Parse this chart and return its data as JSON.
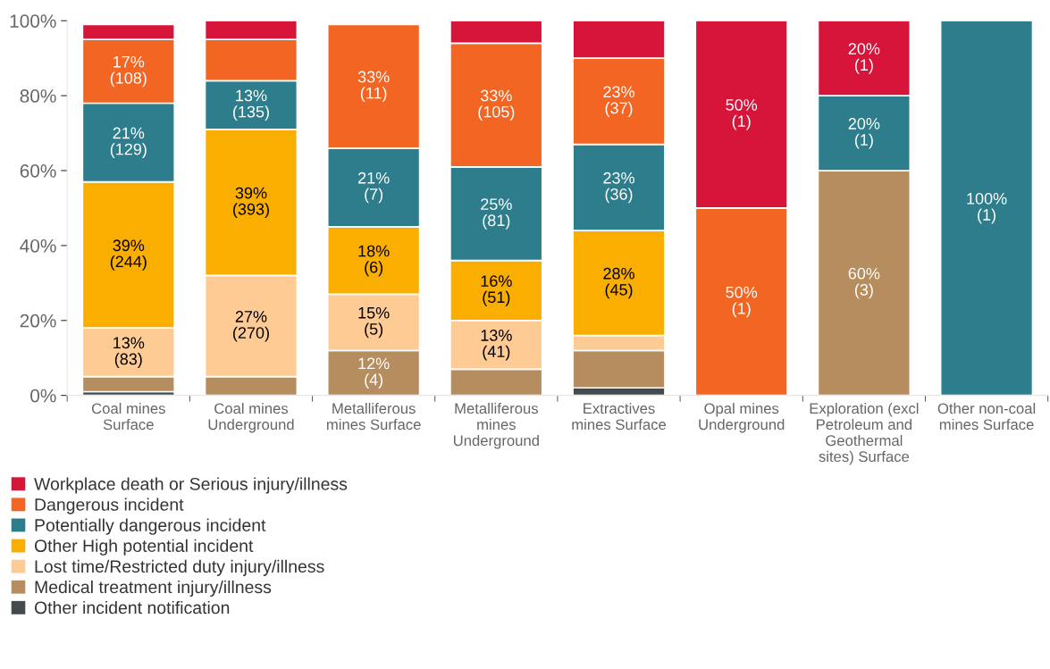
{
  "chart_data": {
    "type": "bar",
    "stacked": true,
    "categories": [
      "Coal mines\nSurface",
      "Coal mines\nUnderground",
      "Metalliferous\nmines Surface",
      "Metalliferous\nmines\nUnderground",
      "Extractives\nmines Surface",
      "Opal mines\nUnderground",
      "Exploration (excl\nPetroleum and\nGeothermal\nsites) Surface",
      "Other non-coal\nmines Surface"
    ],
    "series": [
      {
        "name": "Other incident notification",
        "color": "#434b4f",
        "values": [
          1,
          null,
          null,
          null,
          2,
          null,
          null,
          null
        ],
        "value_labels": [
          null,
          null,
          null,
          null,
          null,
          null,
          null,
          null
        ]
      },
      {
        "name": "Medical treatment injury/illness",
        "color": "#b68d5e",
        "values": [
          4,
          5,
          12,
          7,
          10,
          null,
          60,
          null
        ],
        "value_labels": [
          null,
          null,
          "12%\n(4)",
          null,
          null,
          null,
          "60%\n(3)",
          null
        ]
      },
      {
        "name": "Lost time/Restricted duty injury/illness",
        "color": "#fecb95",
        "values": [
          13,
          27,
          15,
          13,
          4,
          null,
          null,
          null
        ],
        "value_labels": [
          "13%\n(83)",
          "27%\n(270)",
          "15%\n(5)",
          "13%\n(41)",
          null,
          null,
          null,
          null
        ]
      },
      {
        "name": "Other High potential incident",
        "color": "#f9ae00",
        "values": [
          39,
          39,
          18,
          16,
          28,
          null,
          null,
          null
        ],
        "value_labels": [
          "39%\n(244)",
          "39%\n(393)",
          "18%\n(6)",
          "16%\n(51)",
          "28%\n(45)",
          null,
          null,
          null
        ]
      },
      {
        "name": "Potentially dangerous incident",
        "color": "#2e7d8c",
        "values": [
          21,
          13,
          21,
          25,
          23,
          null,
          20,
          100
        ],
        "value_labels": [
          "21%\n(129)",
          "13%\n(135)",
          "21%\n(7)",
          "25%\n(81)",
          "23%\n(36)",
          null,
          "20%\n(1)",
          "100%\n(1)"
        ]
      },
      {
        "name": "Dangerous incident",
        "color": "#f26522",
        "values": [
          17,
          11,
          33,
          33,
          23,
          50,
          null,
          null
        ],
        "value_labels": [
          "17%\n(108)",
          null,
          "33%\n(11)",
          "33%\n(105)",
          "23%\n(37)",
          "50%\n(1)",
          null,
          null
        ]
      },
      {
        "name": "Workplace death or Serious injury/illness",
        "color": "#d7153a",
        "values": [
          4,
          5,
          null,
          6,
          10,
          50,
          20,
          null
        ],
        "value_labels": [
          null,
          null,
          null,
          null,
          null,
          "50%\n(1)",
          "20%\n(1)",
          null
        ]
      }
    ],
    "ylim": [
      0,
      100
    ],
    "yticks": [
      {
        "value": 0,
        "label": "0%"
      },
      {
        "value": 20,
        "label": "20%"
      },
      {
        "value": 40,
        "label": "40%"
      },
      {
        "value": 60,
        "label": "60%"
      },
      {
        "value": 80,
        "label": "80%"
      },
      {
        "value": 100,
        "label": "100%"
      }
    ],
    "legend": "bottom left"
  }
}
